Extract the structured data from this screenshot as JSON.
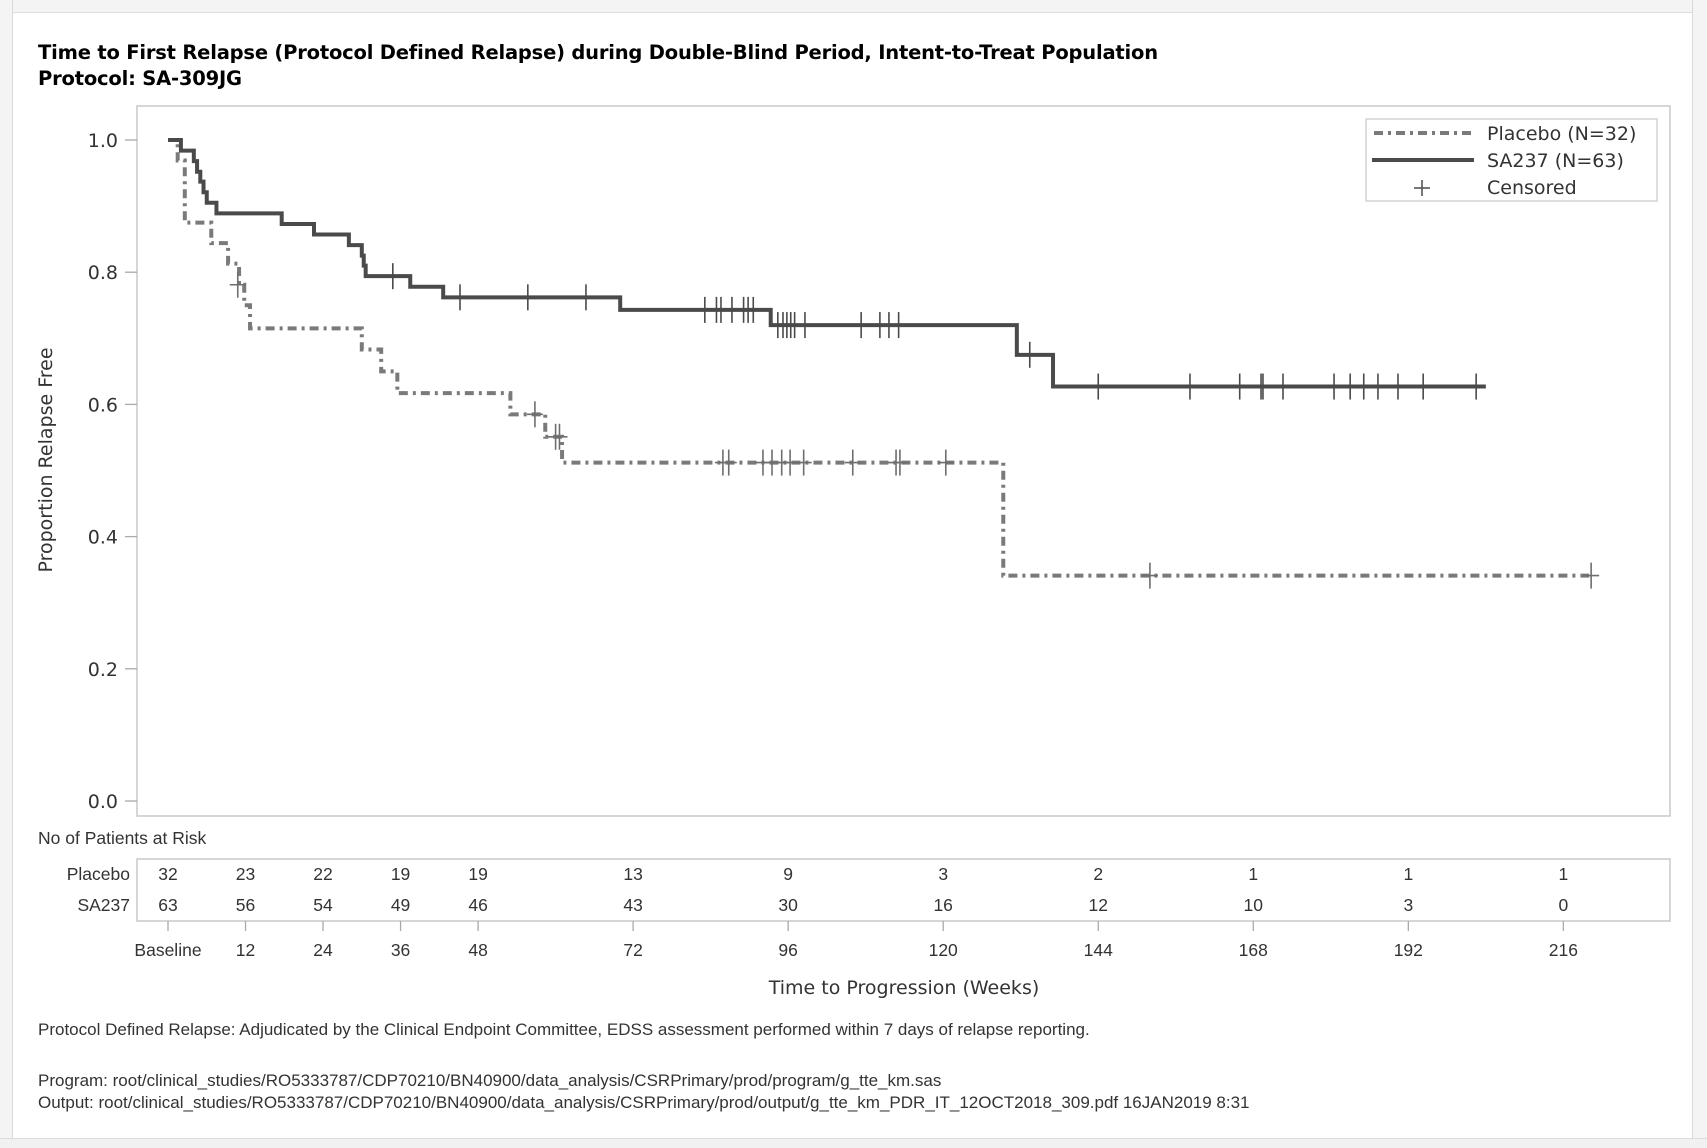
{
  "title": {
    "line1": "Time to First Relapse (Protocol Defined Relapse) during Double-Blind Period, Intent-to-Treat Population",
    "line2": "Protocol: SA-309JG"
  },
  "chart_data": {
    "type": "line",
    "subtype": "kaplan-meier step",
    "title": "Time to First Relapse (Protocol Defined Relapse) during Double-Blind Period, Intent-to-Treat Population",
    "xlabel": "Time to Progression (Weeks)",
    "ylabel": "Proportion Relapse Free",
    "xlim": [
      -4,
      233
    ],
    "ylim": [
      -0.02,
      1.05
    ],
    "grid": false,
    "legend_position": "top-right",
    "x_ticks": [
      0,
      12,
      24,
      36,
      48,
      72,
      96,
      120,
      144,
      168,
      192,
      216
    ],
    "x_tick_labels": [
      "Baseline",
      "12",
      "24",
      "36",
      "48",
      "72",
      "96",
      "120",
      "144",
      "168",
      "192",
      "216"
    ],
    "y_ticks": [
      0.0,
      0.2,
      0.4,
      0.6,
      0.8,
      1.0
    ],
    "y_tick_labels": [
      "0.0",
      "0.2",
      "0.4",
      "0.6",
      "0.8",
      "1.0"
    ],
    "legend": [
      {
        "label": "Placebo (N=32)",
        "style": "dash-dot"
      },
      {
        "label": "SA237 (N=63)",
        "style": "solid"
      },
      {
        "label": "Censored",
        "style": "plus-marker"
      }
    ],
    "series": [
      {
        "name": "Placebo (N=32)",
        "style": "dash-dot",
        "color": "#7a7a7a",
        "steps": [
          [
            0,
            1.0
          ],
          [
            1.5,
            0.969
          ],
          [
            2.6,
            0.875
          ],
          [
            6.7,
            0.844
          ],
          [
            9.3,
            0.813
          ],
          [
            11.0,
            0.781
          ],
          [
            11.8,
            0.75
          ],
          [
            12.7,
            0.715
          ],
          [
            30.0,
            0.683
          ],
          [
            33.0,
            0.65
          ],
          [
            35.5,
            0.617
          ],
          [
            53.0,
            0.585
          ],
          [
            58.4,
            0.551
          ],
          [
            61.0,
            0.512
          ],
          [
            129.3,
            0.341
          ]
        ],
        "end_time": 220,
        "censored": [
          [
            10.8,
            0.781
          ],
          [
            56.8,
            0.585
          ],
          [
            60.0,
            0.551
          ],
          [
            60.6,
            0.551
          ],
          [
            85.9,
            0.512
          ],
          [
            86.8,
            0.512
          ],
          [
            92.1,
            0.512
          ],
          [
            93.5,
            0.512
          ],
          [
            95.0,
            0.512
          ],
          [
            96.3,
            0.512
          ],
          [
            98.4,
            0.512
          ],
          [
            106.0,
            0.512
          ],
          [
            112.7,
            0.512
          ],
          [
            113.3,
            0.512
          ],
          [
            120.4,
            0.512
          ],
          [
            152.0,
            0.341
          ],
          [
            220.3,
            0.341
          ]
        ]
      },
      {
        "name": "SA237 (N=63)",
        "style": "solid",
        "color": "#4a4a4a",
        "steps": [
          [
            0,
            1.0
          ],
          [
            2.0,
            0.984
          ],
          [
            4.0,
            0.968
          ],
          [
            4.5,
            0.952
          ],
          [
            5.0,
            0.937
          ],
          [
            5.5,
            0.921
          ],
          [
            6.0,
            0.905
          ],
          [
            7.5,
            0.889
          ],
          [
            17.6,
            0.873
          ],
          [
            22.6,
            0.857
          ],
          [
            28.0,
            0.841
          ],
          [
            30.0,
            0.825
          ],
          [
            30.3,
            0.81
          ],
          [
            30.6,
            0.794
          ],
          [
            37.5,
            0.778
          ],
          [
            42.6,
            0.762
          ],
          [
            70.0,
            0.743
          ],
          [
            93.3,
            0.72
          ],
          [
            131.4,
            0.675
          ],
          [
            137.0,
            0.627
          ]
        ],
        "end_time": 204,
        "censored": [
          [
            34.8,
            0.794
          ],
          [
            45.2,
            0.762
          ],
          [
            55.7,
            0.762
          ],
          [
            64.7,
            0.762
          ],
          [
            83.1,
            0.743
          ],
          [
            84.9,
            0.743
          ],
          [
            85.6,
            0.743
          ],
          [
            87.3,
            0.743
          ],
          [
            89.1,
            0.743
          ],
          [
            89.8,
            0.743
          ],
          [
            90.6,
            0.743
          ],
          [
            94.4,
            0.72
          ],
          [
            95.2,
            0.72
          ],
          [
            95.8,
            0.72
          ],
          [
            96.4,
            0.72
          ],
          [
            97.0,
            0.72
          ],
          [
            98.6,
            0.72
          ],
          [
            107.3,
            0.72
          ],
          [
            110.2,
            0.72
          ],
          [
            111.6,
            0.72
          ],
          [
            113.1,
            0.72
          ],
          [
            133.4,
            0.675
          ],
          [
            144.0,
            0.627
          ],
          [
            158.2,
            0.627
          ],
          [
            165.9,
            0.627
          ],
          [
            169.2,
            0.627
          ],
          [
            169.5,
            0.627
          ],
          [
            172.6,
            0.627
          ],
          [
            180.5,
            0.627
          ],
          [
            183.0,
            0.627
          ],
          [
            185.1,
            0.627
          ],
          [
            187.3,
            0.627
          ],
          [
            190.4,
            0.627
          ],
          [
            194.3,
            0.627
          ],
          [
            202.5,
            0.627
          ]
        ]
      }
    ],
    "risk_table": {
      "title": "No of Patients at Risk",
      "times": [
        0,
        12,
        24,
        36,
        48,
        72,
        96,
        120,
        144,
        168,
        192,
        216
      ],
      "rows": [
        {
          "label": "Placebo",
          "values": [
            32,
            23,
            22,
            19,
            19,
            13,
            9,
            3,
            2,
            1,
            1,
            1
          ]
        },
        {
          "label": "SA237",
          "values": [
            63,
            56,
            54,
            49,
            46,
            43,
            30,
            16,
            12,
            10,
            3,
            0
          ]
        }
      ]
    }
  },
  "footnotes": {
    "definition": "Protocol Defined Relapse: Adjudicated by the Clinical Endpoint Committee, EDSS assessment performed within 7 days of relapse reporting.",
    "program": "Program: root/clinical_studies/RO5333787/CDP70210/BN40900/data_analysis/CSRPrimary/prod/program/g_tte_km.sas",
    "output": "Output: root/clinical_studies/RO5333787/CDP70210/BN40900/data_analysis/CSRPrimary/prod/output/g_tte_km_PDR_IT_12OCT2018_309.pdf 16JAN2019 8:31"
  }
}
